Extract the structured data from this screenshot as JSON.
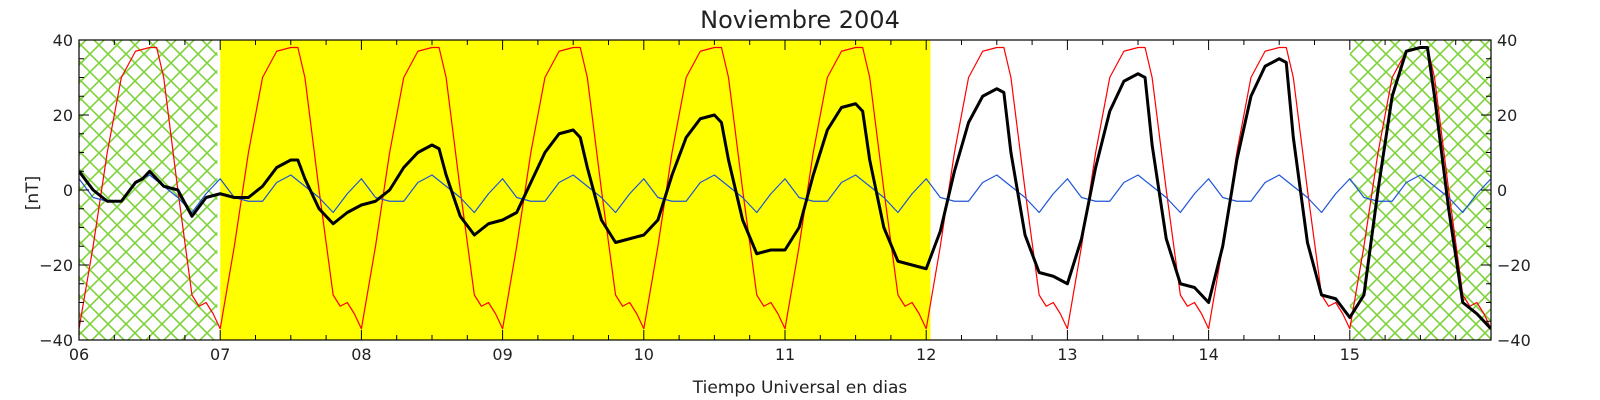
{
  "chart_data": {
    "type": "line",
    "title": "Noviembre 2004",
    "xlabel": "Tiempo Universal en dias",
    "ylabel": "[nT]",
    "xlim": [
      6,
      16
    ],
    "ylim": [
      -40,
      40
    ],
    "x_ticks": [
      6,
      7,
      8,
      9,
      10,
      11,
      12,
      13,
      14,
      15
    ],
    "x_tick_labels": [
      "06",
      "07",
      "08",
      "09",
      "10",
      "11",
      "12",
      "13",
      "14",
      "15"
    ],
    "y_ticks": [
      -40,
      -20,
      0,
      20,
      40
    ],
    "y_tick_labels": [
      "−40",
      "−20",
      "0",
      "20",
      "40"
    ],
    "grid": false,
    "background_regions": [
      {
        "kind": "crosshatch",
        "x_start": 6.0,
        "x_end": 6.98,
        "color": "#7fd33a"
      },
      {
        "kind": "highlight",
        "x_start": 7.0,
        "x_end": 12.03,
        "color": "#ffff00"
      },
      {
        "kind": "crosshatch",
        "x_start": 15.0,
        "x_end": 16.0,
        "color": "#7fd33a"
      }
    ],
    "series": [
      {
        "color": "#ff0000",
        "width": 1.2,
        "x": [
          6.0,
          6.1,
          6.2,
          6.3,
          6.4,
          6.5,
          6.55,
          6.6,
          6.7,
          6.8,
          6.85,
          6.9,
          6.95,
          7.0,
          7.1,
          7.2,
          7.3,
          7.4,
          7.5,
          7.55,
          7.6,
          7.7,
          7.8,
          7.85,
          7.9,
          7.95,
          8.0,
          8.1,
          8.2,
          8.3,
          8.4,
          8.5,
          8.55,
          8.6,
          8.7,
          8.8,
          8.85,
          8.9,
          8.95,
          9.0,
          9.1,
          9.2,
          9.3,
          9.4,
          9.5,
          9.55,
          9.6,
          9.7,
          9.8,
          9.85,
          9.9,
          9.95,
          10.0,
          10.1,
          10.2,
          10.3,
          10.4,
          10.5,
          10.55,
          10.6,
          10.7,
          10.8,
          10.85,
          10.9,
          10.95,
          11.0,
          11.1,
          11.2,
          11.3,
          11.4,
          11.5,
          11.55,
          11.6,
          11.7,
          11.8,
          11.85,
          11.9,
          11.95,
          12.0,
          12.1,
          12.2,
          12.3,
          12.4,
          12.5,
          12.55,
          12.6,
          12.7,
          12.8,
          12.85,
          12.9,
          12.95,
          13.0,
          13.1,
          13.2,
          13.3,
          13.4,
          13.5,
          13.55,
          13.6,
          13.7,
          13.8,
          13.85,
          13.9,
          13.95,
          14.0,
          14.1,
          14.2,
          14.3,
          14.4,
          14.5,
          14.55,
          14.6,
          14.7,
          14.8,
          14.85,
          14.9,
          14.95,
          15.0,
          15.1,
          15.2,
          15.3,
          15.4,
          15.5,
          15.55,
          15.6,
          15.7,
          15.8,
          15.85,
          15.9,
          15.95,
          16.0
        ],
        "values": [
          -37,
          -15,
          10,
          30,
          37,
          38,
          38,
          30,
          0,
          -28,
          -31,
          -30,
          -33,
          -37,
          -15,
          10,
          30,
          37,
          38,
          38,
          30,
          0,
          -28,
          -31,
          -30,
          -33,
          -37,
          -15,
          10,
          30,
          37,
          38,
          38,
          30,
          0,
          -28,
          -31,
          -30,
          -33,
          -37,
          -15,
          10,
          30,
          37,
          38,
          38,
          30,
          0,
          -28,
          -31,
          -30,
          -33,
          -37,
          -15,
          10,
          30,
          37,
          38,
          38,
          30,
          0,
          -28,
          -31,
          -30,
          -33,
          -37,
          -15,
          10,
          30,
          37,
          38,
          38,
          30,
          0,
          -28,
          -31,
          -30,
          -33,
          -37,
          -15,
          10,
          30,
          37,
          38,
          38,
          30,
          0,
          -28,
          -31,
          -30,
          -33,
          -37,
          -15,
          10,
          30,
          37,
          38,
          38,
          30,
          0,
          -28,
          -31,
          -30,
          -33,
          -37,
          -15,
          10,
          30,
          37,
          38,
          38,
          30,
          0,
          -28,
          -31,
          -30,
          -33,
          -37,
          -15,
          10,
          30,
          37,
          38,
          38,
          30,
          0,
          -28,
          -31,
          -30,
          -33,
          -37
        ]
      },
      {
        "color": "#1f55d6",
        "width": 1.2,
        "x": [
          6.0,
          6.1,
          6.2,
          6.3,
          6.4,
          6.5,
          6.6,
          6.7,
          6.8,
          6.9,
          7.0,
          7.1,
          7.2,
          7.3,
          7.4,
          7.5,
          7.6,
          7.7,
          7.8,
          7.9,
          8.0,
          8.1,
          8.2,
          8.3,
          8.4,
          8.5,
          8.6,
          8.7,
          8.8,
          8.9,
          9.0,
          9.1,
          9.2,
          9.3,
          9.4,
          9.5,
          9.6,
          9.7,
          9.8,
          9.9,
          10.0,
          10.1,
          10.2,
          10.3,
          10.4,
          10.5,
          10.6,
          10.7,
          10.8,
          10.9,
          11.0,
          11.1,
          11.2,
          11.3,
          11.4,
          11.5,
          11.6,
          11.7,
          11.8,
          11.9,
          12.0,
          12.1,
          12.2,
          12.3,
          12.4,
          12.5,
          12.6,
          12.7,
          12.8,
          12.9,
          13.0,
          13.1,
          13.2,
          13.3,
          13.4,
          13.5,
          13.6,
          13.7,
          13.8,
          13.9,
          14.0,
          14.1,
          14.2,
          14.3,
          14.4,
          14.5,
          14.6,
          14.7,
          14.8,
          14.9,
          15.0,
          15.1,
          15.2,
          15.3,
          15.4,
          15.5,
          15.6,
          15.7,
          15.8,
          15.9,
          16.0
        ],
        "values": [
          3,
          -2,
          -3,
          -3,
          2,
          4,
          1,
          -2,
          -6,
          -1,
          3,
          -2,
          -3,
          -3,
          2,
          4,
          1,
          -2,
          -6,
          -1,
          3,
          -2,
          -3,
          -3,
          2,
          4,
          1,
          -2,
          -6,
          -1,
          3,
          -2,
          -3,
          -3,
          2,
          4,
          1,
          -2,
          -6,
          -1,
          3,
          -2,
          -3,
          -3,
          2,
          4,
          1,
          -2,
          -6,
          -1,
          3,
          -2,
          -3,
          -3,
          2,
          4,
          1,
          -2,
          -6,
          -1,
          3,
          -2,
          -3,
          -3,
          2,
          4,
          1,
          -2,
          -6,
          -1,
          3,
          -2,
          -3,
          -3,
          2,
          4,
          1,
          -2,
          -6,
          -1,
          3,
          -2,
          -3,
          -3,
          2,
          4,
          1,
          -2,
          -6,
          -1,
          3,
          -2,
          -3,
          -3,
          2,
          4,
          1,
          -2,
          -6,
          -1,
          3
        ]
      },
      {
        "color": "#000000",
        "width": 3,
        "x": [
          6.0,
          6.1,
          6.2,
          6.3,
          6.4,
          6.45,
          6.5,
          6.55,
          6.6,
          6.7,
          6.8,
          6.9,
          7.0,
          7.1,
          7.2,
          7.3,
          7.4,
          7.5,
          7.55,
          7.6,
          7.7,
          7.8,
          7.9,
          8.0,
          8.1,
          8.2,
          8.3,
          8.4,
          8.5,
          8.55,
          8.6,
          8.7,
          8.8,
          8.9,
          9.0,
          9.1,
          9.2,
          9.3,
          9.4,
          9.5,
          9.55,
          9.6,
          9.7,
          9.8,
          9.9,
          10.0,
          10.1,
          10.2,
          10.3,
          10.4,
          10.5,
          10.55,
          10.6,
          10.7,
          10.8,
          10.9,
          11.0,
          11.1,
          11.2,
          11.3,
          11.4,
          11.5,
          11.55,
          11.6,
          11.7,
          11.8,
          11.9,
          12.0,
          12.1,
          12.2,
          12.3,
          12.4,
          12.5,
          12.55,
          12.6,
          12.7,
          12.8,
          12.9,
          13.0,
          13.1,
          13.2,
          13.3,
          13.4,
          13.5,
          13.55,
          13.6,
          13.7,
          13.8,
          13.9,
          14.0,
          14.1,
          14.2,
          14.3,
          14.4,
          14.5,
          14.55,
          14.6,
          14.7,
          14.8,
          14.9,
          15.0,
          15.1,
          15.2,
          15.3,
          15.4,
          15.5,
          15.55,
          15.6,
          15.7,
          15.8,
          15.9,
          15.95,
          16.0
        ],
        "values": [
          5,
          0,
          -3,
          -3,
          2,
          3,
          5,
          3,
          1,
          0,
          -7,
          -2,
          -1,
          -2,
          -2,
          1,
          6,
          8,
          8,
          3,
          -5,
          -9,
          -6,
          -4,
          -3,
          0,
          6,
          10,
          12,
          11,
          4,
          -7,
          -12,
          -9,
          -8,
          -6,
          2,
          10,
          15,
          16,
          14,
          6,
          -8,
          -14,
          -13,
          -12,
          -8,
          4,
          14,
          19,
          20,
          18,
          8,
          -8,
          -17,
          -16,
          -16,
          -10,
          4,
          16,
          22,
          23,
          21,
          8,
          -10,
          -19,
          -20,
          -21,
          -11,
          5,
          18,
          25,
          27,
          26,
          10,
          -12,
          -22,
          -23,
          -25,
          -13,
          6,
          21,
          29,
          31,
          30,
          12,
          -13,
          -25,
          -26,
          -30,
          -15,
          8,
          25,
          33,
          35,
          34,
          14,
          -14,
          -28,
          -29,
          -34,
          -28,
          0,
          25,
          37,
          38,
          38,
          25,
          -5,
          -30,
          -33,
          -35,
          -37
        ]
      }
    ]
  }
}
